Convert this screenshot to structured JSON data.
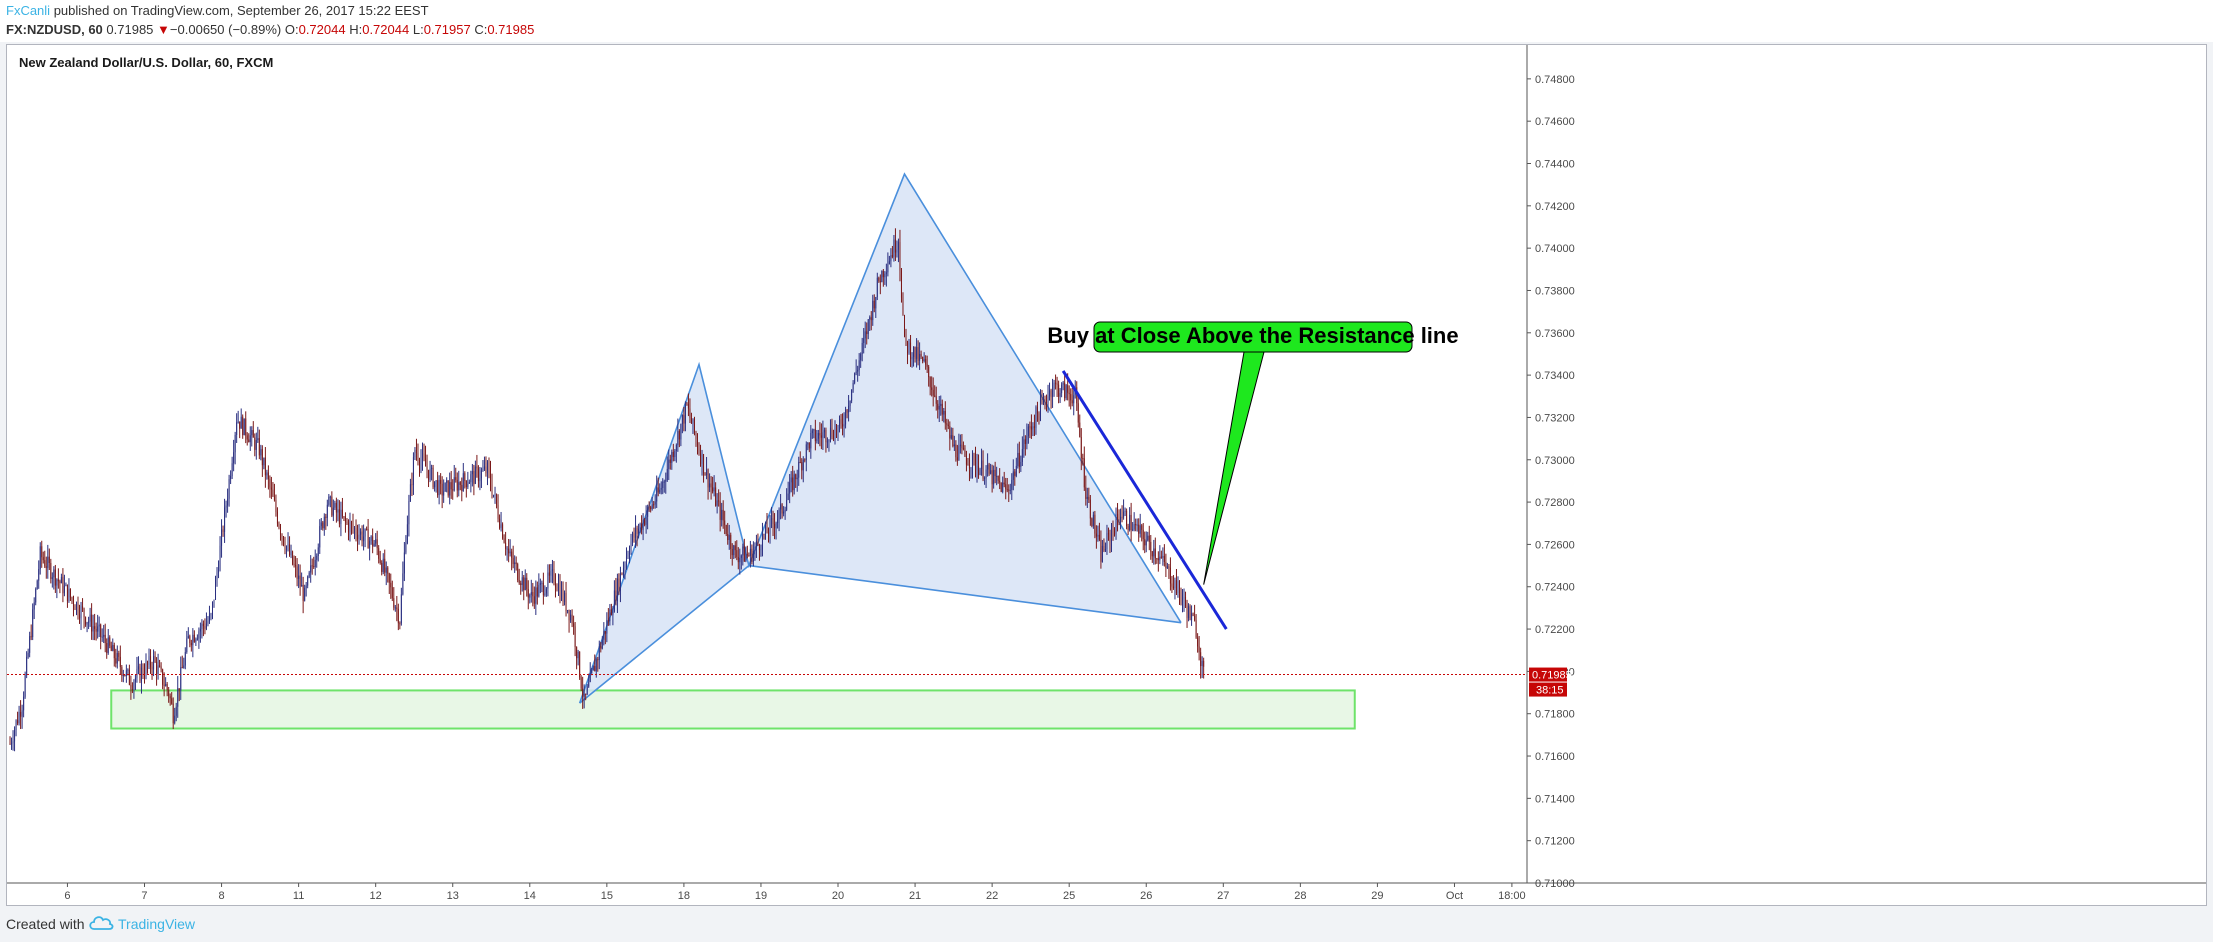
{
  "header": {
    "author": "FxCanli",
    "published": " published on TradingView.com, September 26, 2017 15:22 EEST",
    "symbol": "FX:NZDUSD, 60",
    "last": "0.71985",
    "change": "−0.00650 (−0.89%)",
    "open_label": "O:",
    "open": "0.72044",
    "high_label": "H:",
    "high": "0.72044",
    "low_label": "L:",
    "low": "0.71957",
    "close_label": "C:",
    "close": "0.71985"
  },
  "footer": {
    "created_with": "Created with",
    "brand": "TradingView"
  },
  "colors": {
    "bull": "#2a2f80",
    "bear": "#7a1818",
    "pattern_line": "#4a8fdc",
    "pattern_fill": "#d7e3f6",
    "resistance_line": "#1a27d8",
    "support_zone_border": "#6ee36a",
    "support_zone_fill": "#e8f7e6",
    "callout_fill": "#1ee81e",
    "price_label_bg": "#c60606"
  },
  "chart_data": {
    "type": "candlestick",
    "title": "New Zealand Dollar/U.S. Dollar, 60, FXCM",
    "ylim": [
      0.71,
      0.7496
    ],
    "y_ticks": [
      0.748,
      0.746,
      0.744,
      0.742,
      0.74,
      0.738,
      0.736,
      0.734,
      0.732,
      0.73,
      0.728,
      0.726,
      0.724,
      0.722,
      0.72,
      0.718,
      0.716,
      0.714,
      0.712,
      0.71
    ],
    "y_tick_labels": [
      "0.74800",
      "0.74600",
      "0.74400",
      "0.74200",
      "0.74000",
      "0.73800",
      "0.73600",
      "0.73400",
      "0.73200",
      "0.73000",
      "0.72800",
      "0.72600",
      "0.72400",
      "0.72200",
      "0.72000",
      "0.71800",
      "0.71600",
      "0.71400",
      "0.71200",
      "0.71000"
    ],
    "x_ticks": [
      {
        "label": "6",
        "idx": 38
      },
      {
        "label": "7",
        "idx": 89
      },
      {
        "label": "8",
        "idx": 140
      },
      {
        "label": "11",
        "idx": 191
      },
      {
        "label": "12",
        "idx": 242
      },
      {
        "label": "13",
        "idx": 293
      },
      {
        "label": "14",
        "idx": 344
      },
      {
        "label": "15",
        "idx": 395
      },
      {
        "label": "18",
        "idx": 446
      },
      {
        "label": "19",
        "idx": 497
      },
      {
        "label": "20",
        "idx": 548
      },
      {
        "label": "21",
        "idx": 599
      },
      {
        "label": "22",
        "idx": 650
      },
      {
        "label": "25",
        "idx": 701
      },
      {
        "label": "26",
        "idx": 752
      },
      {
        "label": "27",
        "idx": 803
      },
      {
        "label": "28",
        "idx": 854
      },
      {
        "label": "29",
        "idx": 905
      },
      {
        "label": "Oct",
        "idx": 956
      },
      {
        "label": "18:00",
        "idx": 994
      }
    ],
    "idx_range": [
      -2,
      1004
    ],
    "anchors": [
      [
        0,
        0.7166
      ],
      [
        8,
        0.7185
      ],
      [
        20,
        0.7255
      ],
      [
        40,
        0.7235
      ],
      [
        62,
        0.7215
      ],
      [
        80,
        0.7195
      ],
      [
        95,
        0.7205
      ],
      [
        105,
        0.719
      ],
      [
        108,
        0.718
      ],
      [
        118,
        0.7215
      ],
      [
        133,
        0.7225
      ],
      [
        145,
        0.729
      ],
      [
        150,
        0.732
      ],
      [
        165,
        0.7305
      ],
      [
        180,
        0.7265
      ],
      [
        195,
        0.7235
      ],
      [
        210,
        0.728
      ],
      [
        222,
        0.727
      ],
      [
        242,
        0.726
      ],
      [
        258,
        0.7225
      ],
      [
        262,
        0.7265
      ],
      [
        268,
        0.7305
      ],
      [
        285,
        0.7285
      ],
      [
        300,
        0.729
      ],
      [
        316,
        0.7295
      ],
      [
        330,
        0.7255
      ],
      [
        345,
        0.7235
      ],
      [
        360,
        0.7245
      ],
      [
        372,
        0.7225
      ],
      [
        380,
        0.7185
      ],
      [
        392,
        0.7215
      ],
      [
        410,
        0.726
      ],
      [
        430,
        0.7285
      ],
      [
        448,
        0.7325
      ],
      [
        460,
        0.7295
      ],
      [
        480,
        0.7255
      ],
      [
        490,
        0.7255
      ],
      [
        510,
        0.7275
      ],
      [
        530,
        0.731
      ],
      [
        550,
        0.7315
      ],
      [
        565,
        0.7355
      ],
      [
        575,
        0.7385
      ],
      [
        588,
        0.7405
      ],
      [
        592,
        0.7355
      ],
      [
        605,
        0.7345
      ],
      [
        625,
        0.7305
      ],
      [
        645,
        0.7295
      ],
      [
        660,
        0.7285
      ],
      [
        675,
        0.7315
      ],
      [
        690,
        0.7335
      ],
      [
        705,
        0.733
      ],
      [
        712,
        0.7285
      ],
      [
        722,
        0.7255
      ],
      [
        735,
        0.7275
      ],
      [
        748,
        0.7265
      ],
      [
        760,
        0.7255
      ],
      [
        772,
        0.724
      ],
      [
        785,
        0.722
      ],
      [
        790,
        0.7198
      ]
    ],
    "last_price": 0.71985,
    "last_price_label": "0.71985",
    "countdown_label": "38:15",
    "drawings": {
      "pattern": [
        {
          "idx": 377,
          "price": 0.7185
        },
        {
          "idx": 456,
          "price": 0.7345
        },
        {
          "idx": 489,
          "price": 0.725
        },
        {
          "idx": 592,
          "price": 0.7435
        },
        {
          "idx": 775,
          "price": 0.7223
        }
      ],
      "resistance_line": [
        {
          "idx": 697,
          "price": 0.7342
        },
        {
          "idx": 805,
          "price": 0.722
        }
      ],
      "support_zone": {
        "idx_start": 67,
        "idx_end": 890,
        "price_top": 0.7191,
        "price_bottom": 0.7173
      },
      "callout": {
        "text": "Buy at Close Above the Resistance line",
        "pointer_to": {
          "idx": 790,
          "price": 0.7241
        }
      }
    }
  }
}
